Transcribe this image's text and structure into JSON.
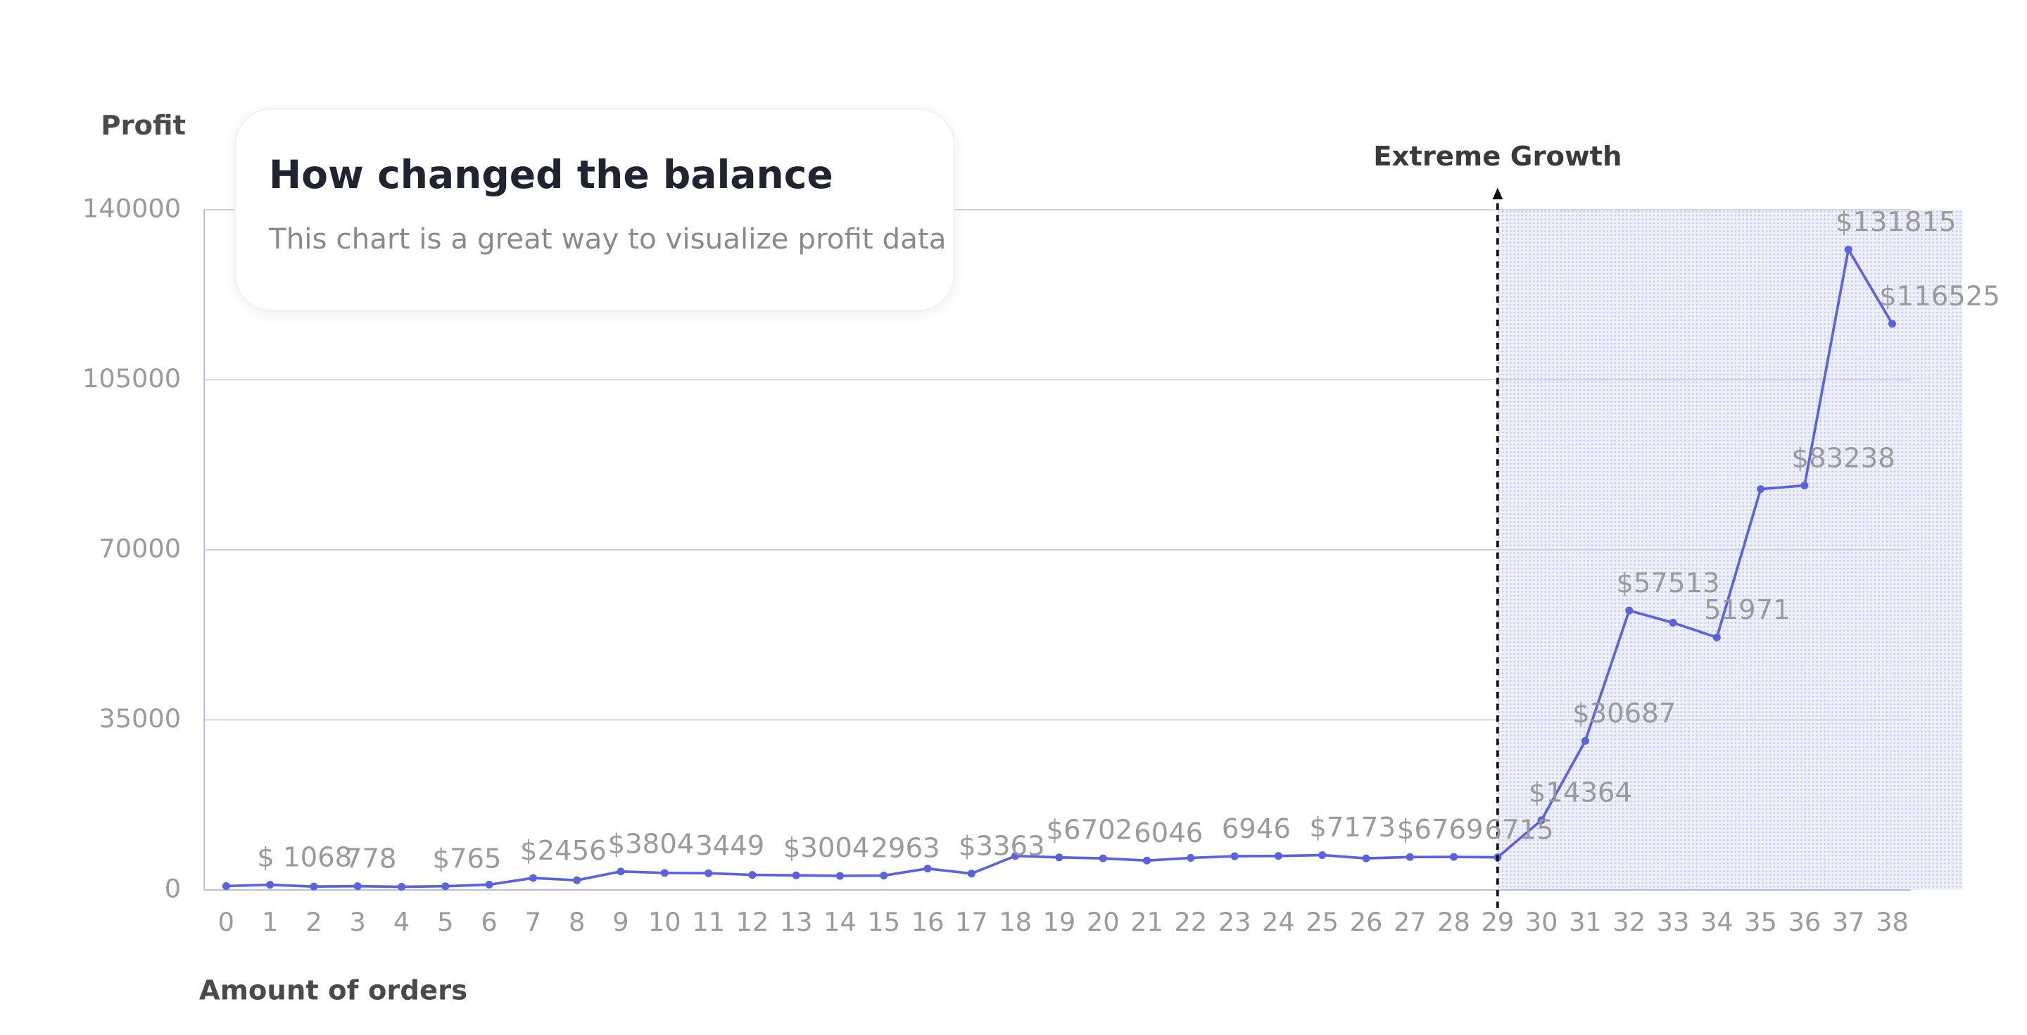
{
  "chart_data": {
    "type": "line",
    "title": "How changed the balance",
    "subtitle": "This chart is a great way to visualize profit data",
    "x_label": "Amount of orders",
    "y_label": "Profit",
    "x": [
      0,
      1,
      2,
      3,
      4,
      5,
      6,
      7,
      8,
      9,
      10,
      11,
      12,
      13,
      14,
      15,
      16,
      17,
      18,
      19,
      20,
      21,
      22,
      23,
      24,
      25,
      26,
      27,
      28,
      29,
      30,
      31,
      32,
      33,
      34,
      35,
      36,
      37,
      38
    ],
    "series": [
      {
        "name": "Profit",
        "color": "#5a62e0",
        "values": [
          800,
          1068,
          700,
          778,
          650,
          765,
          1100,
          2456,
          2000,
          3804,
          3500,
          3449,
          3100,
          3004,
          2900,
          2963,
          4400,
          3363,
          7000,
          6702,
          6500,
          6046,
          6600,
          6946,
          7000,
          7173,
          6500,
          6769,
          6800,
          6715,
          14364,
          30687,
          57513,
          55000,
          51971,
          82500,
          83238,
          131815,
          116525
        ],
        "value_labels": [
          null,
          "$ 1068",
          null,
          "778",
          null,
          "$765",
          null,
          "$2456",
          null,
          "$3804",
          null,
          "3449",
          null,
          "$3004",
          null,
          "2963",
          null,
          "$3363",
          null,
          "$6702",
          null,
          "6046",
          null,
          "6946",
          null,
          "$7173",
          null,
          "$6769",
          null,
          "6715",
          "$14364",
          "$30687",
          "$57513",
          null,
          "51971",
          null,
          "$83238",
          "$131815",
          "$116525"
        ]
      }
    ],
    "xlim": [
      -0.5,
      39.6
    ],
    "xticks": [
      0,
      1,
      2,
      3,
      4,
      5,
      6,
      7,
      8,
      9,
      10,
      11,
      12,
      13,
      14,
      15,
      16,
      17,
      18,
      19,
      20,
      21,
      22,
      23,
      24,
      25,
      26,
      27,
      28,
      29,
      30,
      31,
      32,
      33,
      34,
      35,
      36,
      37,
      38
    ],
    "ylim": [
      0,
      140000
    ],
    "yticks": [
      0,
      35000,
      70000,
      105000,
      140000
    ],
    "grid": true,
    "annotations": [
      {
        "text": "Extreme Growth",
        "x": 29
      }
    ]
  }
}
